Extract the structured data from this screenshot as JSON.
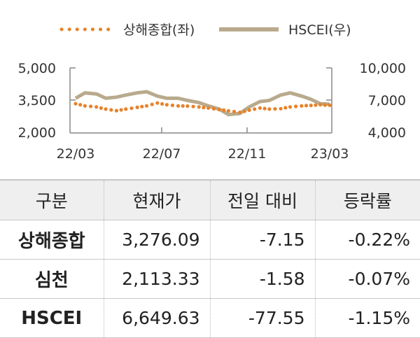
{
  "chart_data": {
    "type": "line",
    "title": "",
    "legend": [
      {
        "name": "상해종합(좌)",
        "style": "dotted",
        "color": "#e8822a"
      },
      {
        "name": "HSCEI(우)",
        "style": "solid",
        "color": "#b9aa8d"
      }
    ],
    "legend_position": "top-center",
    "x_ticks": [
      "22/03",
      "22/07",
      "22/11",
      "23/03"
    ],
    "y_left": {
      "ticks": [
        "2,000",
        "3,500",
        "5,000"
      ],
      "range": [
        2000,
        5000
      ]
    },
    "y_right": {
      "ticks": [
        "4,000",
        "7,000",
        "10,000"
      ],
      "range": [
        4000,
        10000
      ]
    },
    "grid": false,
    "series": [
      {
        "name": "상해종합(좌)",
        "axis": "left",
        "color": "#e8822a",
        "x": [
          "2022-03-01",
          "2022-03-15",
          "2022-04-01",
          "2022-04-15",
          "2022-05-01",
          "2022-05-15",
          "2022-06-01",
          "2022-06-15",
          "2022-07-01",
          "2022-07-15",
          "2022-08-01",
          "2022-08-15",
          "2022-09-01",
          "2022-09-15",
          "2022-10-01",
          "2022-10-15",
          "2022-11-01",
          "2022-11-15",
          "2022-12-01",
          "2022-12-15",
          "2023-01-01",
          "2023-01-15",
          "2023-02-01",
          "2023-02-15",
          "2023-03-01",
          "2023-03-15"
        ],
        "y": [
          3350,
          3250,
          3200,
          3100,
          3030,
          3100,
          3180,
          3250,
          3380,
          3300,
          3250,
          3240,
          3200,
          3150,
          3080,
          3020,
          2950,
          3050,
          3150,
          3100,
          3120,
          3200,
          3250,
          3270,
          3300,
          3276
        ]
      },
      {
        "name": "HSCEI(우)",
        "axis": "right",
        "color": "#b9aa8d",
        "x": [
          "2022-03-01",
          "2022-03-15",
          "2022-04-01",
          "2022-04-15",
          "2022-05-01",
          "2022-05-15",
          "2022-06-01",
          "2022-06-15",
          "2022-07-01",
          "2022-07-15",
          "2022-08-01",
          "2022-08-15",
          "2022-09-01",
          "2022-09-15",
          "2022-10-01",
          "2022-10-15",
          "2022-11-01",
          "2022-11-15",
          "2022-12-01",
          "2022-12-15",
          "2023-01-01",
          "2023-01-15",
          "2023-02-01",
          "2023-02-15",
          "2023-03-01",
          "2023-03-15"
        ],
        "y": [
          7200,
          7700,
          7600,
          7200,
          7300,
          7500,
          7700,
          7800,
          7400,
          7200,
          7200,
          7000,
          6800,
          6500,
          6200,
          5700,
          5800,
          6400,
          6900,
          7000,
          7500,
          7700,
          7400,
          7100,
          6700,
          6650
        ]
      }
    ]
  },
  "table": {
    "headers": [
      "구분",
      "현재가",
      "전일 대비",
      "등락률"
    ],
    "rows": [
      {
        "name": "상해종합",
        "price": "3,276.09",
        "change": "-7.15",
        "rate": "-0.22%"
      },
      {
        "name": "심천",
        "price": "2,113.33",
        "change": "-1.58",
        "rate": "-0.07%"
      },
      {
        "name": "HSCEI",
        "price": "6,649.63",
        "change": "-77.55",
        "rate": "-1.15%"
      }
    ]
  }
}
